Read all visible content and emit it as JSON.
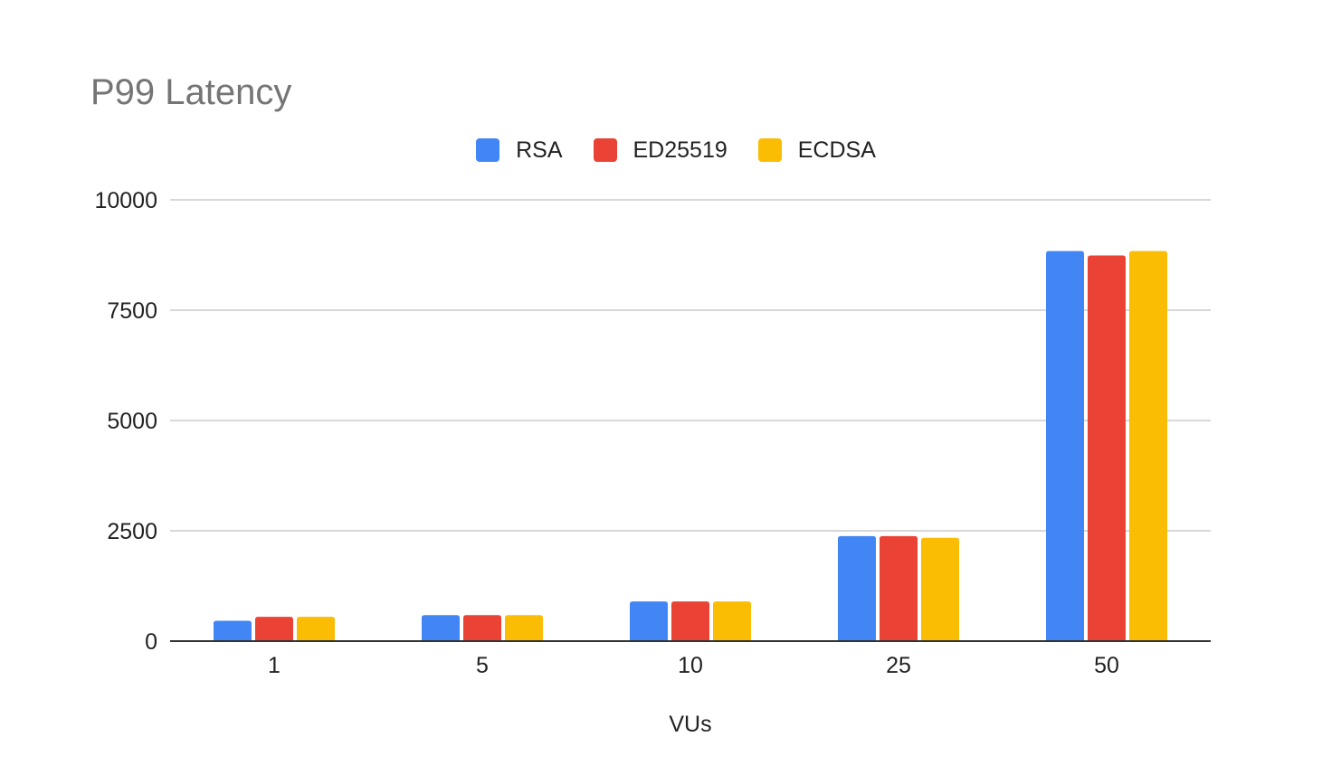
{
  "chart_data": {
    "type": "bar",
    "title": "P99 Latency",
    "xlabel": "VUs",
    "ylabel": "",
    "categories": [
      "1",
      "5",
      "10",
      "25",
      "50"
    ],
    "series": [
      {
        "name": "RSA",
        "color": "#4285F4",
        "values": [
          460,
          590,
          900,
          2380,
          8840
        ]
      },
      {
        "name": "ED25519",
        "color": "#EA4335",
        "values": [
          550,
          590,
          900,
          2380,
          8740
        ]
      },
      {
        "name": "ECDSA",
        "color": "#FBBC04",
        "values": [
          550,
          590,
          900,
          2340,
          8840
        ]
      }
    ],
    "ylim": [
      0,
      10000
    ],
    "yticks": [
      "0",
      "2500",
      "5000",
      "7500",
      "10000"
    ],
    "ytick_values": [
      0,
      2500,
      5000,
      7500,
      10000
    ],
    "grid": true,
    "legend_position": "top"
  }
}
